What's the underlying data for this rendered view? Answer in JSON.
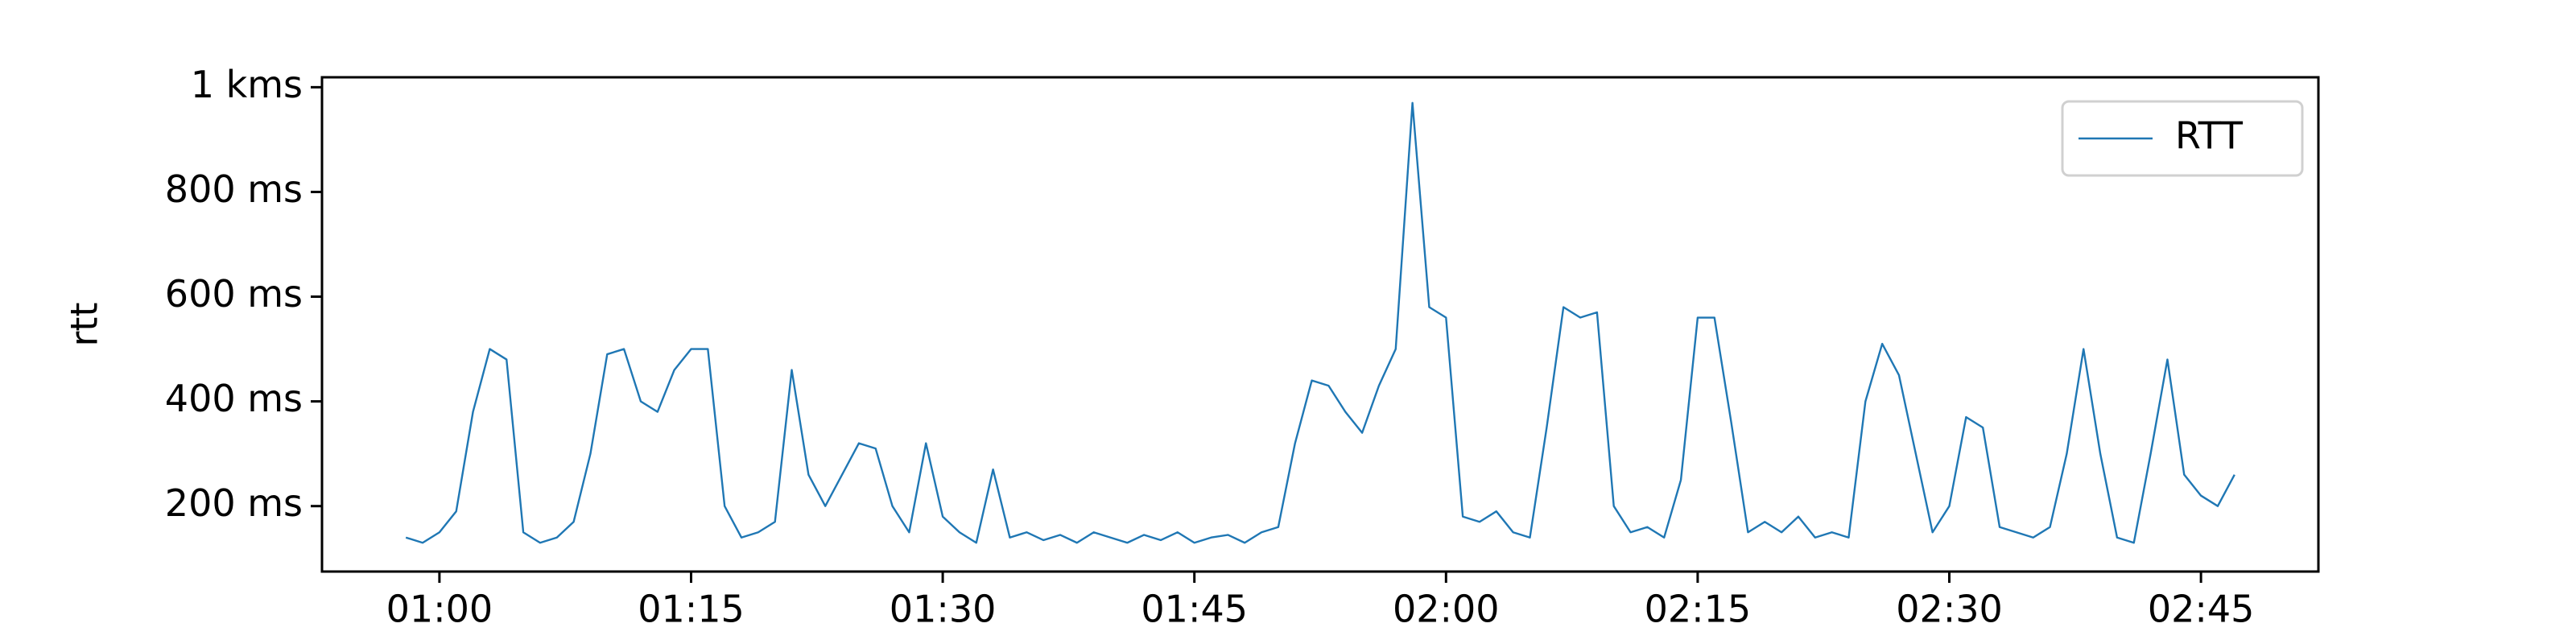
{
  "chart_data": {
    "type": "line",
    "y_label": "rtt",
    "x": [
      "00:58",
      "00:59",
      "01:00",
      "01:01",
      "01:02",
      "01:03",
      "01:04",
      "01:05",
      "01:06",
      "01:07",
      "01:08",
      "01:09",
      "01:10",
      "01:11",
      "01:12",
      "01:13",
      "01:14",
      "01:15",
      "01:16",
      "01:17",
      "01:18",
      "01:19",
      "01:20",
      "01:21",
      "01:22",
      "01:23",
      "01:24",
      "01:25",
      "01:26",
      "01:27",
      "01:28",
      "01:29",
      "01:30",
      "01:31",
      "01:32",
      "01:33",
      "01:34",
      "01:35",
      "01:36",
      "01:37",
      "01:38",
      "01:39",
      "01:40",
      "01:41",
      "01:42",
      "01:43",
      "01:44",
      "01:45",
      "01:46",
      "01:47",
      "01:48",
      "01:49",
      "01:50",
      "01:51",
      "01:52",
      "01:53",
      "01:54",
      "01:55",
      "01:56",
      "01:57",
      "01:58",
      "01:59",
      "02:00",
      "02:01",
      "02:02",
      "02:03",
      "02:04",
      "02:05",
      "02:06",
      "02:07",
      "02:08",
      "02:09",
      "02:10",
      "02:11",
      "02:12",
      "02:13",
      "02:14",
      "02:15",
      "02:16",
      "02:17",
      "02:18",
      "02:19",
      "02:20",
      "02:21",
      "02:22",
      "02:23",
      "02:24",
      "02:25",
      "02:26",
      "02:27",
      "02:28",
      "02:29",
      "02:30",
      "02:31",
      "02:32",
      "02:33",
      "02:34",
      "02:35",
      "02:36",
      "02:37",
      "02:38",
      "02:39",
      "02:40",
      "02:41",
      "02:42",
      "02:43",
      "02:44",
      "02:45",
      "02:46",
      "02:47"
    ],
    "series": [
      {
        "name": "RTT",
        "color": "#1f77b4",
        "values": [
          140,
          130,
          150,
          190,
          380,
          500,
          480,
          150,
          130,
          140,
          170,
          300,
          490,
          500,
          400,
          380,
          460,
          500,
          500,
          200,
          140,
          150,
          170,
          460,
          260,
          200,
          260,
          320,
          310,
          200,
          150,
          320,
          180,
          150,
          130,
          270,
          140,
          150,
          135,
          145,
          130,
          150,
          140,
          130,
          145,
          135,
          150,
          130,
          140,
          145,
          130,
          150,
          160,
          320,
          440,
          430,
          380,
          340,
          430,
          500,
          970,
          580,
          560,
          180,
          170,
          190,
          150,
          140,
          350,
          580,
          560,
          570,
          200,
          150,
          160,
          140,
          250,
          560,
          560,
          360,
          150,
          170,
          150,
          180,
          140,
          150,
          140,
          400,
          510,
          450,
          300,
          150,
          200,
          370,
          350,
          160,
          150,
          140,
          160,
          300,
          500,
          300,
          140,
          130,
          300,
          480,
          260,
          220,
          200,
          260
        ]
      }
    ],
    "xlim": [
      "00:53",
      "02:52"
    ],
    "xticks": [
      "01:00",
      "01:15",
      "01:30",
      "01:45",
      "02:00",
      "02:15",
      "02:30",
      "02:45"
    ],
    "ylim": [
      75,
      1019
    ],
    "yticks": [
      {
        "value": 200,
        "label": "200 ms"
      },
      {
        "value": 400,
        "label": "400 ms"
      },
      {
        "value": 600,
        "label": "600 ms"
      },
      {
        "value": 800,
        "label": "800 ms"
      },
      {
        "value": 1000,
        "label": "1 kms"
      }
    ],
    "legend": "upper right"
  }
}
